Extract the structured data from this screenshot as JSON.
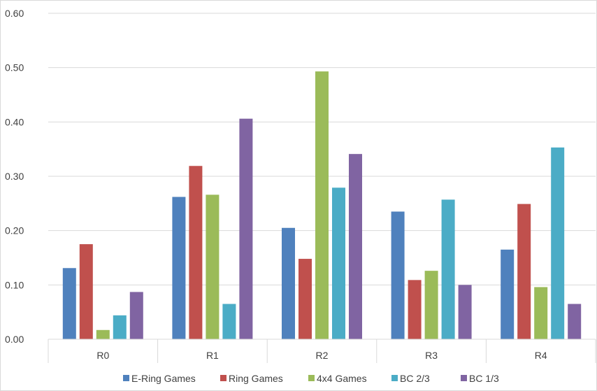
{
  "chart_data": {
    "type": "bar",
    "categories": [
      "R0",
      "R1",
      "R2",
      "R3",
      "R4"
    ],
    "series": [
      {
        "name": "E-Ring Games",
        "color": "#4f81bd",
        "values": [
          0.131,
          0.262,
          0.205,
          0.235,
          0.165
        ]
      },
      {
        "name": "Ring Games",
        "color": "#c0504d",
        "values": [
          0.175,
          0.319,
          0.148,
          0.109,
          0.249
        ]
      },
      {
        "name": "4x4 Games",
        "color": "#9bbb59",
        "values": [
          0.017,
          0.266,
          0.493,
          0.126,
          0.096
        ]
      },
      {
        "name": "BC 2/3",
        "color": "#4bacc6",
        "values": [
          0.044,
          0.065,
          0.279,
          0.257,
          0.353
        ]
      },
      {
        "name": "BC 1/3",
        "color": "#8064a2",
        "values": [
          0.087,
          0.406,
          0.341,
          0.1,
          0.065
        ]
      }
    ],
    "yticks": [
      "0.00",
      "0.10",
      "0.20",
      "0.30",
      "0.40",
      "0.50",
      "0.60"
    ],
    "ylim": [
      0,
      0.6
    ],
    "grid": true,
    "legend_position": "bottom"
  }
}
